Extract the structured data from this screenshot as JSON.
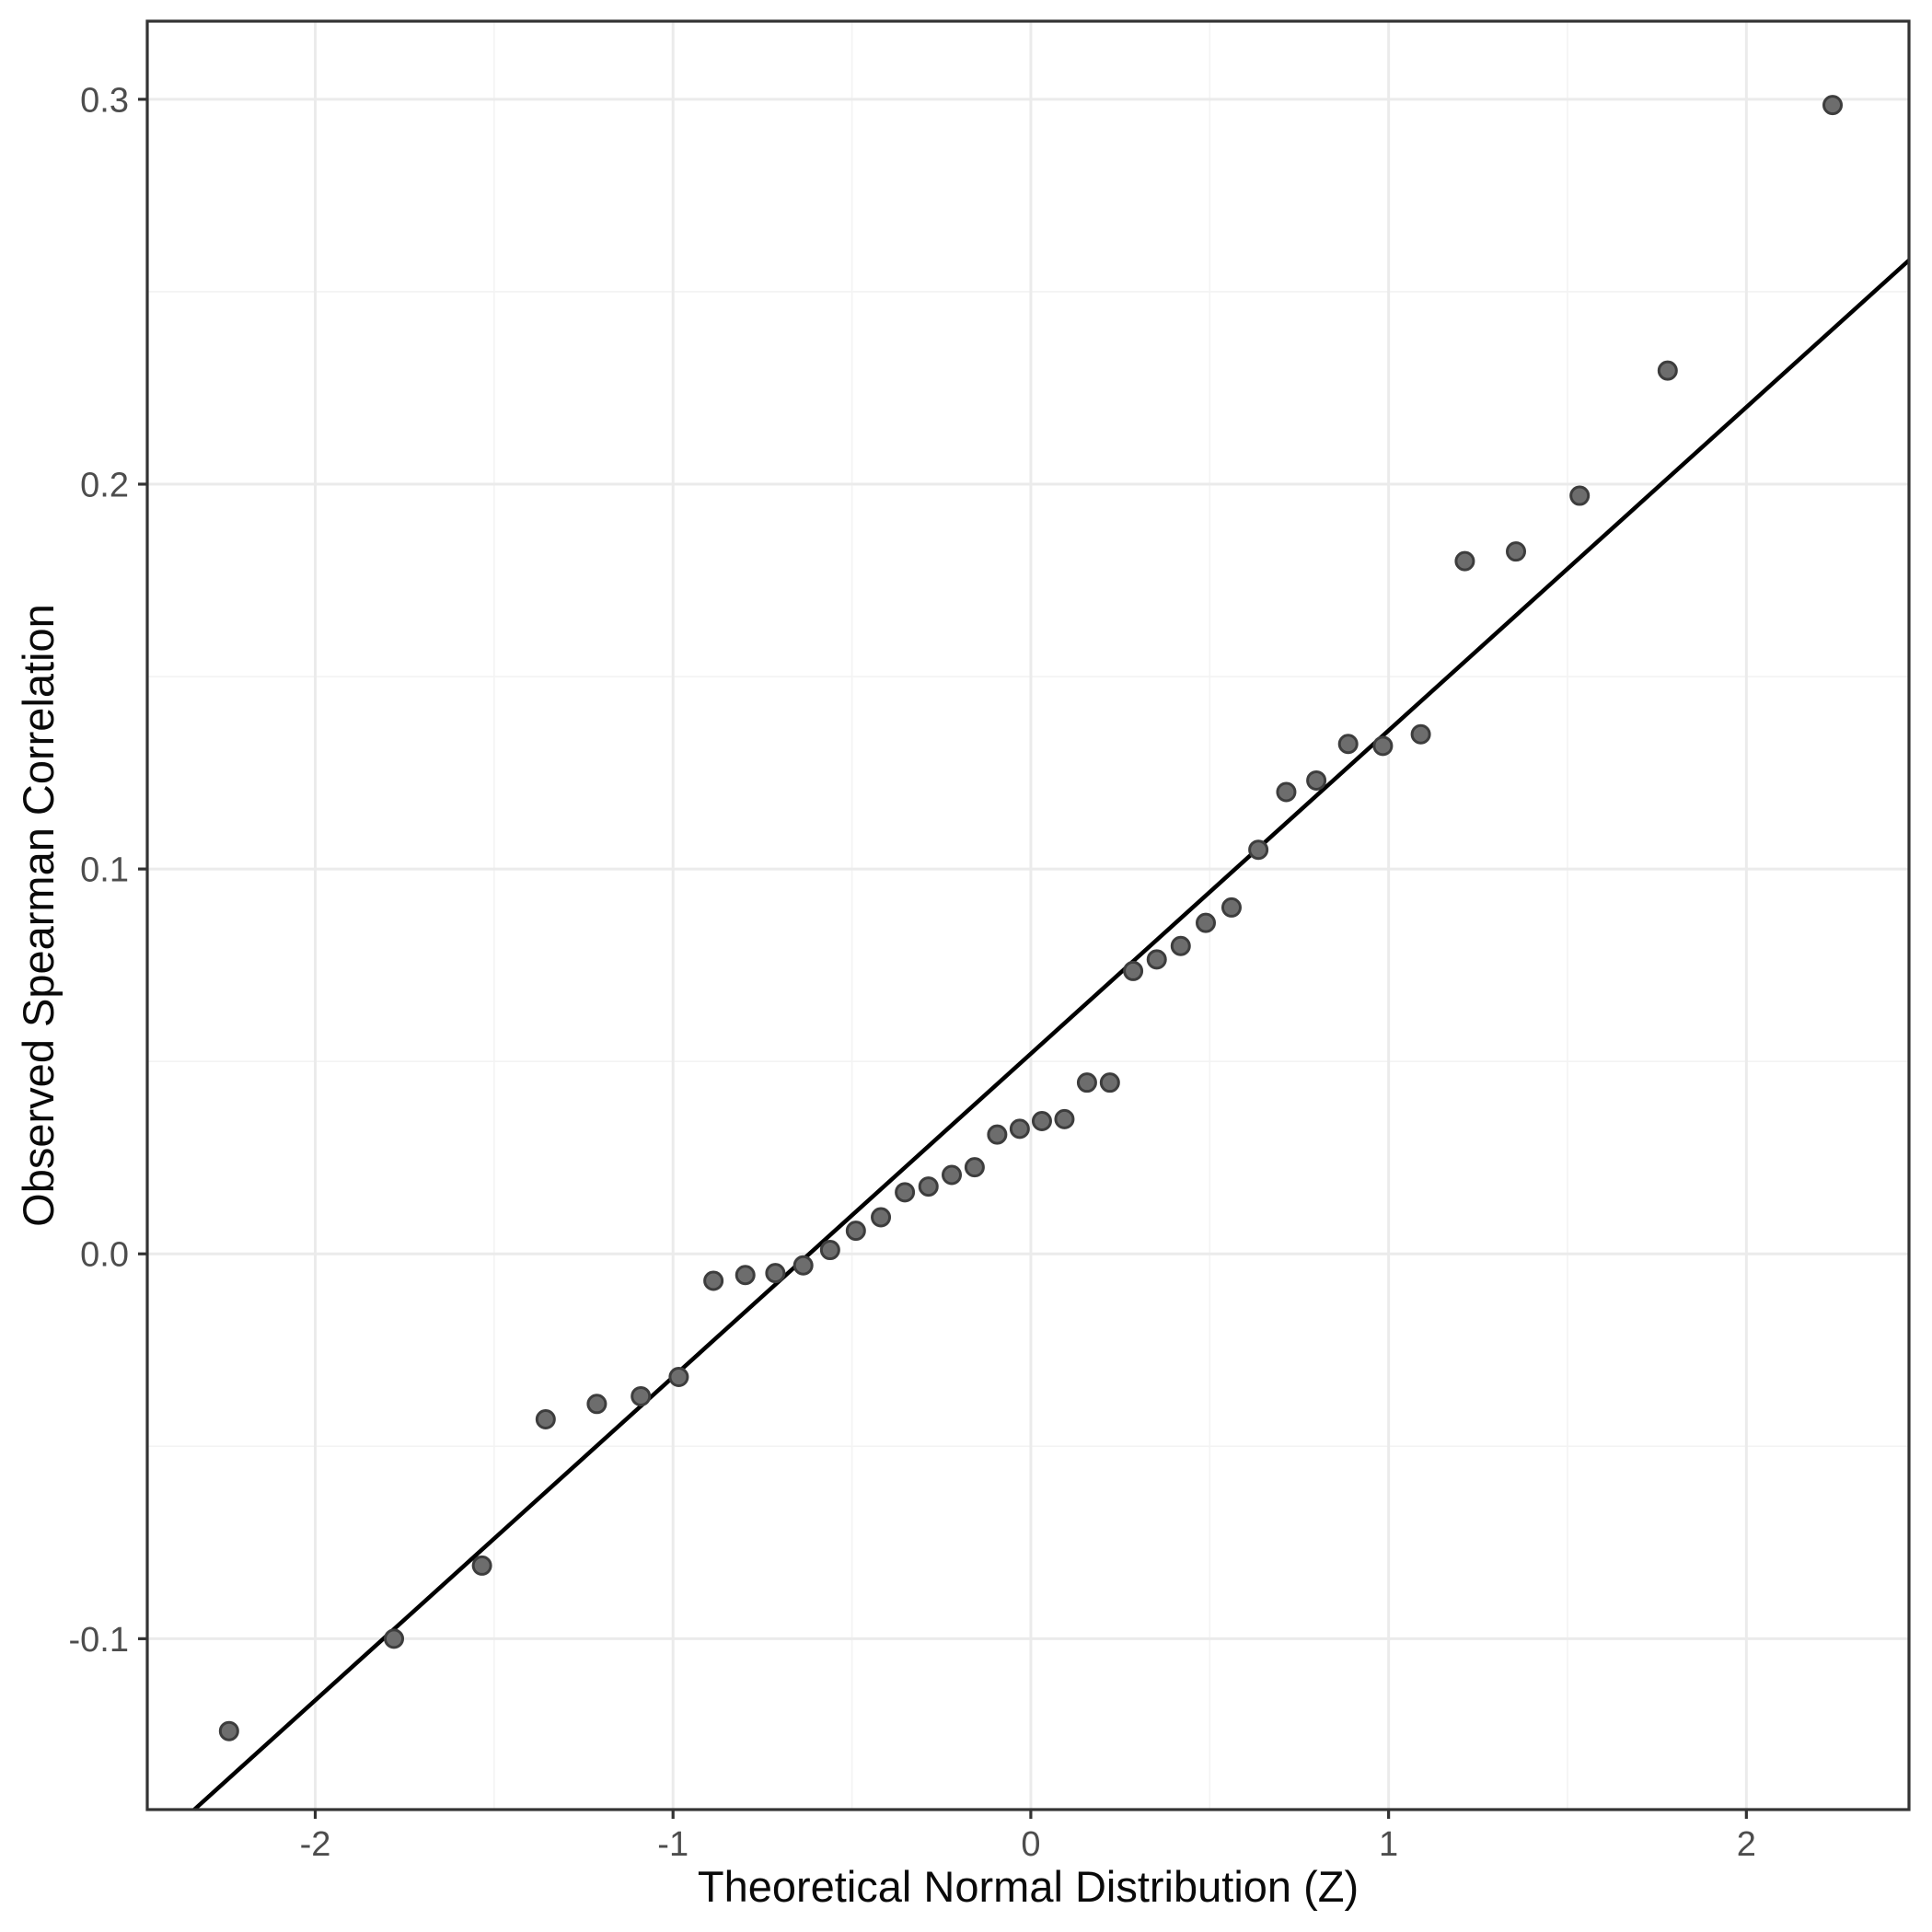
{
  "chart_data": {
    "type": "scatter",
    "title": "",
    "xlabel": "Theoretical Normal Distribution (Z)",
    "ylabel": "Observed Spearman Correlation",
    "x_tick_values": [
      -2,
      -1,
      0,
      1,
      2
    ],
    "x_tick_labels": [
      "-2",
      "-1",
      "0",
      "1",
      "2"
    ],
    "x_minor_ticks": [
      -1.5,
      -0.5,
      0.5,
      1.5
    ],
    "y_tick_values": [
      -0.1,
      0.0,
      0.1,
      0.2,
      0.3
    ],
    "y_tick_labels": [
      "-0.1",
      "0.0",
      "0.1",
      "0.2",
      "0.3"
    ],
    "y_minor_ticks": [
      -0.05,
      0.05,
      0.15,
      0.25
    ],
    "xlim": [
      -2.4695,
      2.4545
    ],
    "ylim": [
      -0.1444,
      0.3203
    ],
    "grid": true,
    "legend_position": "none",
    "ref_line": {
      "intercept": 0.052,
      "slope": 0.084
    },
    "points": [
      [
        -2.241,
        -0.124
      ],
      [
        -1.78,
        -0.1
      ],
      [
        -1.534,
        -0.081
      ],
      [
        -1.356,
        -0.043
      ],
      [
        -1.213,
        -0.039
      ],
      [
        -1.09,
        -0.037
      ],
      [
        -0.984,
        -0.032
      ],
      [
        -0.887,
        -0.007
      ],
      [
        -0.798,
        -0.0055
      ],
      [
        -0.714,
        -0.005
      ],
      [
        -0.636,
        -0.003
      ],
      [
        -0.561,
        0.001
      ],
      [
        -0.489,
        0.006
      ],
      [
        -0.419,
        0.0095
      ],
      [
        -0.352,
        0.016
      ],
      [
        -0.286,
        0.0175
      ],
      [
        -0.221,
        0.0205
      ],
      [
        -0.157,
        0.0225
      ],
      [
        -0.094,
        0.031
      ],
      [
        -0.031,
        0.0325
      ],
      [
        0.031,
        0.0345
      ],
      [
        0.094,
        0.035
      ],
      [
        0.157,
        0.0445
      ],
      [
        0.221,
        0.0445
      ],
      [
        0.286,
        0.0735
      ],
      [
        0.352,
        0.0765
      ],
      [
        0.419,
        0.08
      ],
      [
        0.489,
        0.086
      ],
      [
        0.561,
        0.09
      ],
      [
        0.636,
        0.105
      ],
      [
        0.714,
        0.12
      ],
      [
        0.798,
        0.123
      ],
      [
        0.887,
        0.1325
      ],
      [
        0.984,
        0.132
      ],
      [
        1.09,
        0.135
      ],
      [
        1.213,
        0.18
      ],
      [
        1.356,
        0.1825
      ],
      [
        1.534,
        0.197
      ],
      [
        1.78,
        0.2295
      ],
      [
        2.241,
        0.2985
      ]
    ]
  },
  "style": {
    "background": "#ffffff",
    "panel_background": "#ffffff",
    "panel_border_color": "#333333",
    "grid_major_color": "#ebebeb",
    "grid_minor_color": "#f3f3f3",
    "tick_color": "#333333",
    "tick_label_color": "#4d4d4d",
    "axis_title_color": "#0a0a0a",
    "point_fill": "#6d6d6d",
    "point_stroke": "#3d3d3d",
    "ref_line_color": "#000000"
  }
}
